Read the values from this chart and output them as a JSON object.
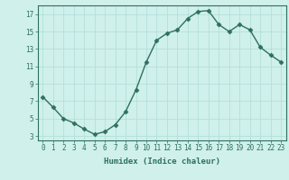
{
  "x": [
    0,
    1,
    2,
    3,
    4,
    5,
    6,
    7,
    8,
    9,
    10,
    11,
    12,
    13,
    14,
    15,
    16,
    17,
    18,
    19,
    20,
    21,
    22,
    23
  ],
  "y": [
    7.5,
    6.3,
    5.0,
    4.5,
    3.8,
    3.2,
    3.5,
    4.3,
    5.8,
    8.3,
    11.5,
    14.0,
    14.8,
    15.2,
    16.5,
    17.3,
    17.4,
    15.8,
    15.0,
    15.8,
    15.2,
    13.2,
    12.3,
    11.5
  ],
  "xlabel": "Humidex (Indice chaleur)",
  "xlim": [
    -0.5,
    23.5
  ],
  "ylim": [
    2.5,
    18.0
  ],
  "yticks": [
    3,
    5,
    7,
    9,
    11,
    13,
    15,
    17
  ],
  "xticks": [
    0,
    1,
    2,
    3,
    4,
    5,
    6,
    7,
    8,
    9,
    10,
    11,
    12,
    13,
    14,
    15,
    16,
    17,
    18,
    19,
    20,
    21,
    22,
    23
  ],
  "line_color": "#2e7060",
  "marker": "D",
  "marker_size": 2.5,
  "bg_color": "#cff0eb",
  "grid_color": "#aeddda",
  "axes_color": "#2e7060",
  "tick_fontsize": 5.5,
  "xlabel_fontsize": 6.5,
  "linewidth": 1.0
}
